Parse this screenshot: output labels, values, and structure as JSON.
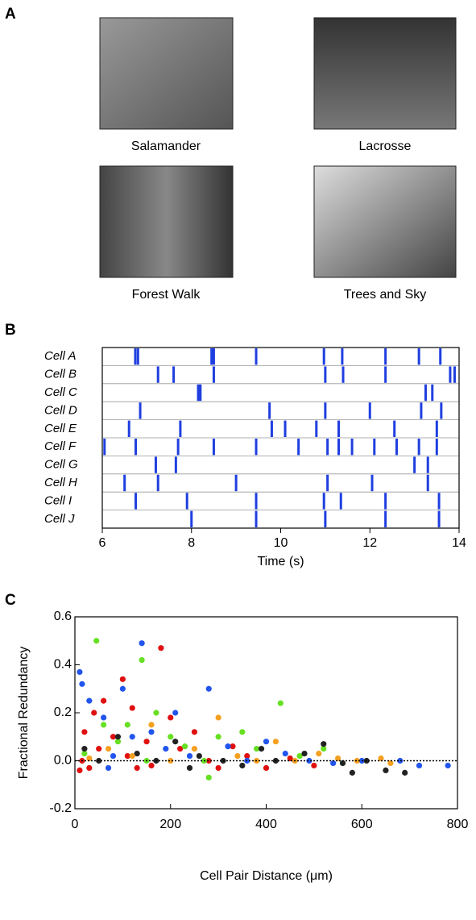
{
  "panel_a": {
    "label": "A",
    "captions": [
      "Salamander",
      "Lacrosse",
      "Forest Walk",
      "Trees and Sky"
    ]
  },
  "chart_data": [
    {
      "type": "raster",
      "panel_label": "B",
      "x_label": "Time (s)",
      "xlim": [
        6,
        14
      ],
      "xticks": [
        6,
        8,
        10,
        12,
        14
      ],
      "series": [
        {
          "name": "Cell A",
          "color": "#1f3fe0",
          "values": [
            6.74,
            6.8,
            8.45,
            8.5,
            9.45,
            10.97,
            11.38,
            12.35,
            13.1,
            13.58
          ]
        },
        {
          "name": "Cell B",
          "color": "#1f3fe0",
          "values": [
            7.25,
            7.6,
            8.5,
            11.0,
            11.4,
            12.35,
            13.8,
            13.9
          ]
        },
        {
          "name": "Cell C",
          "color": "#1f3fe0",
          "values": [
            8.15,
            8.2,
            13.25,
            13.4
          ]
        },
        {
          "name": "Cell D",
          "color": "#1f3fe0",
          "values": [
            6.85,
            9.75,
            11.0,
            12.0,
            13.15,
            13.6
          ]
        },
        {
          "name": "Cell E",
          "color": "#1f3fe0",
          "values": [
            6.6,
            7.75,
            9.8,
            10.1,
            10.8,
            11.3,
            12.55,
            13.5
          ]
        },
        {
          "name": "Cell F",
          "color": "#1f3fe0",
          "values": [
            6.05,
            6.75,
            7.7,
            8.5,
            9.45,
            10.4,
            11.05,
            11.3,
            11.6,
            12.1,
            12.6,
            13.1,
            13.5
          ]
        },
        {
          "name": "Cell G",
          "color": "#1f3fe0",
          "values": [
            7.2,
            7.65,
            13.0,
            13.3
          ]
        },
        {
          "name": "Cell H",
          "color": "#1f3fe0",
          "values": [
            6.5,
            7.25,
            9.0,
            11.05,
            12.05,
            13.3
          ]
        },
        {
          "name": "Cell I",
          "color": "#1f3fe0",
          "values": [
            6.75,
            7.9,
            9.45,
            10.97,
            11.35,
            12.35,
            13.55
          ]
        },
        {
          "name": "Cell J",
          "color": "#1f3fe0",
          "values": [
            8.0,
            9.45,
            11.0,
            12.35,
            13.55
          ]
        }
      ]
    },
    {
      "type": "scatter",
      "panel_label": "C",
      "x_label": "Cell Pair Distance (μm)",
      "y_label": "Fractional Redundancy",
      "xlim": [
        0,
        800
      ],
      "xticks": [
        0,
        200,
        400,
        600,
        800
      ],
      "ylim": [
        -0.2,
        0.6
      ],
      "yticks": [
        -0.2,
        {
          "value": 0,
          "label": "0.0"
        },
        0.2,
        0.4,
        0.6
      ],
      "zero_line": true,
      "series": [
        {
          "color": "#e01010",
          "x": [
            15,
            20,
            30,
            40,
            50,
            60,
            80,
            100,
            110,
            120,
            150,
            160,
            180,
            200,
            220,
            250,
            280,
            300,
            330,
            360,
            400,
            450,
            500,
            10,
            130
          ],
          "values": [
            0.0,
            0.12,
            -0.03,
            0.2,
            0.05,
            0.25,
            0.1,
            0.34,
            0.02,
            0.22,
            0.08,
            -0.02,
            0.47,
            0.18,
            0.05,
            0.12,
            0.0,
            -0.03,
            0.06,
            0.02,
            -0.03,
            0.01,
            -0.02,
            -0.04,
            -0.03
          ]
        },
        {
          "color": "#66e022",
          "x": [
            20,
            45,
            60,
            90,
            110,
            140,
            170,
            200,
            230,
            270,
            300,
            350,
            380,
            430,
            470,
            520,
            560,
            280,
            150
          ],
          "values": [
            0.03,
            0.5,
            0.15,
            0.08,
            0.15,
            0.42,
            0.2,
            0.1,
            0.06,
            0.0,
            0.1,
            0.12,
            0.05,
            0.24,
            0.02,
            0.05,
            -0.01,
            -0.07,
            0.0
          ]
        },
        {
          "color": "#2255ee",
          "x": [
            10,
            15,
            30,
            60,
            80,
            100,
            120,
            140,
            160,
            190,
            210,
            240,
            280,
            320,
            360,
            400,
            440,
            490,
            540,
            600,
            680,
            720,
            780,
            70
          ],
          "values": [
            0.37,
            0.32,
            0.25,
            0.18,
            0.02,
            0.3,
            0.1,
            0.49,
            0.12,
            0.05,
            0.2,
            0.02,
            0.3,
            0.06,
            0.0,
            0.08,
            0.03,
            0.0,
            -0.01,
            0.0,
            0.0,
            -0.02,
            -0.02,
            -0.03
          ]
        },
        {
          "color": "#222222",
          "x": [
            20,
            50,
            90,
            130,
            170,
            210,
            260,
            310,
            350,
            390,
            420,
            480,
            520,
            560,
            610,
            650,
            690,
            580,
            240
          ],
          "values": [
            0.05,
            0.0,
            0.1,
            0.03,
            0.0,
            0.08,
            0.02,
            0.0,
            -0.02,
            0.05,
            0.0,
            0.03,
            0.07,
            -0.01,
            0.0,
            -0.04,
            -0.05,
            -0.05,
            -0.03
          ]
        },
        {
          "color": "#f5a020",
          "x": [
            30,
            70,
            120,
            160,
            200,
            250,
            300,
            340,
            380,
            420,
            460,
            510,
            550,
            590,
            640,
            660
          ],
          "values": [
            0.01,
            0.05,
            0.02,
            0.15,
            0.0,
            0.05,
            0.18,
            0.02,
            0.0,
            0.08,
            0.0,
            0.03,
            0.01,
            0.0,
            0.01,
            -0.01
          ]
        }
      ]
    }
  ]
}
